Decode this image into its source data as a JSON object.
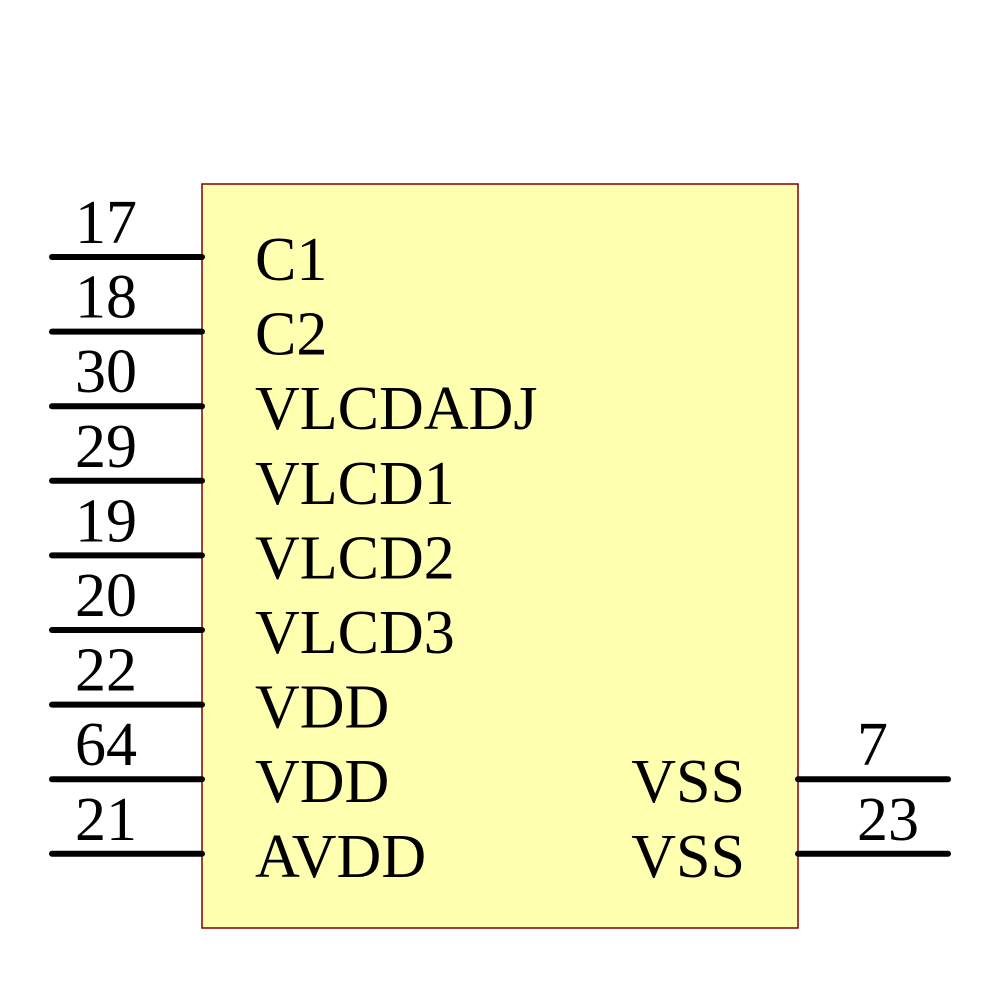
{
  "component": {
    "body_fill": "#FFFFB0",
    "body_stroke": "#800000",
    "left_pins": [
      {
        "number": "17",
        "name": "C1"
      },
      {
        "number": "18",
        "name": "C2"
      },
      {
        "number": "30",
        "name": "VLCDADJ"
      },
      {
        "number": "29",
        "name": "VLCD1"
      },
      {
        "number": "19",
        "name": "VLCD2"
      },
      {
        "number": "20",
        "name": "VLCD3"
      },
      {
        "number": "22",
        "name": "VDD"
      },
      {
        "number": "64",
        "name": "VDD"
      },
      {
        "number": "21",
        "name": "AVDD"
      }
    ],
    "right_pins": [
      {
        "number": "7",
        "name": "VSS"
      },
      {
        "number": "23",
        "name": "VSS"
      }
    ]
  }
}
